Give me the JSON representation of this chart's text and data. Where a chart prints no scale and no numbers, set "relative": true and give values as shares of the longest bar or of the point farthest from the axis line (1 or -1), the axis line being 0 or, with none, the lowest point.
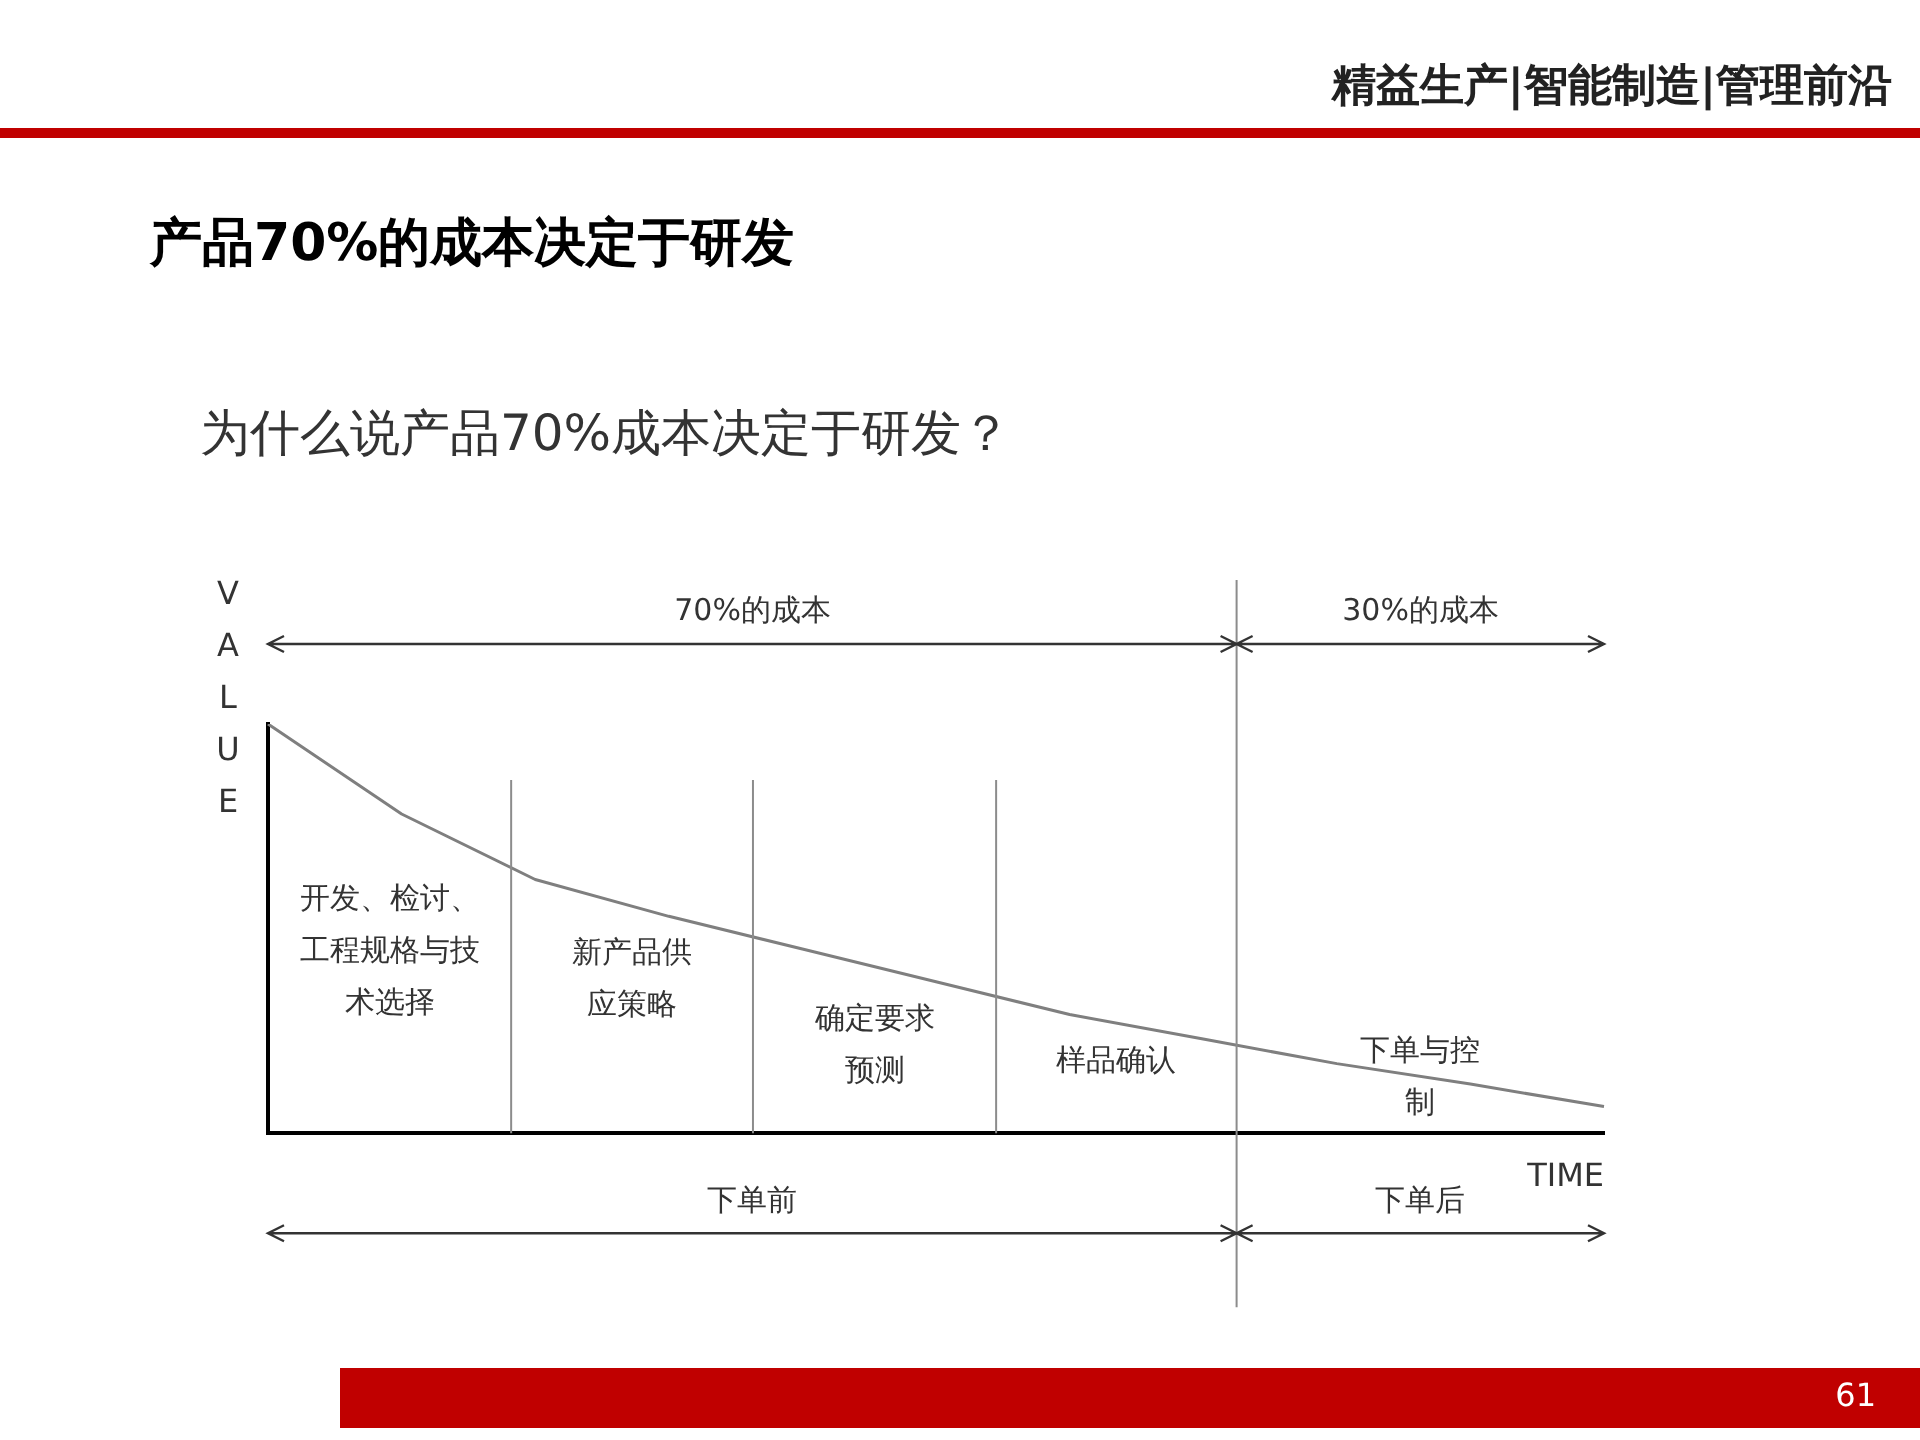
{
  "chart_data": {
    "type": "line",
    "title": "产品70%的成本决定于研发",
    "subtitle": "为什么说产品70%成本决定于研发？",
    "xlabel": "TIME",
    "ylabel": "VALUE",
    "relative": true,
    "marker": "none",
    "categories": [
      null,
      null,
      null,
      null,
      null,
      null,
      null,
      null,
      null,
      null,
      null
    ],
    "series": [
      {
        "color": "#7f7f7f",
        "values": [
          1,
          0.78,
          0.62,
          0.53,
          0.45,
          0.37,
          0.29,
          0.23,
          0.17,
          0.12,
          0.065
        ]
      }
    ],
    "annotations": [
      "开发、检讨、工程规格与技术选择",
      "新产品供应策略",
      "确定要求预测",
      "样品确认",
      "下单与控制",
      "70%的成本",
      "30%的成本",
      "下单前",
      "下单后",
      "精益生产|智能制造|管理前沿",
      "61"
    ]
  }
}
